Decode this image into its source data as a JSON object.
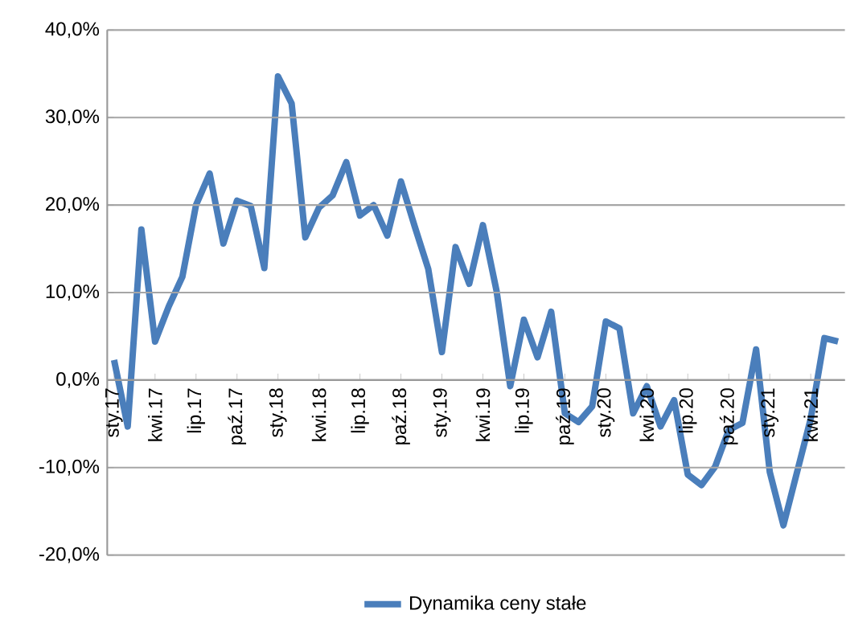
{
  "chart_data": {
    "type": "line",
    "categories": [
      "sty.17",
      null,
      null,
      "kwi.17",
      null,
      null,
      "lip.17",
      null,
      null,
      "paź.17",
      null,
      null,
      "sty.18",
      null,
      null,
      "kwi.18",
      null,
      null,
      "lip.18",
      null,
      null,
      "paź.18",
      null,
      null,
      "sty.19",
      null,
      null,
      "kwi.19",
      null,
      null,
      "lip.19",
      null,
      null,
      "paź.19",
      null,
      null,
      "sty.20",
      null,
      null,
      "kwi.20",
      null,
      null,
      "lip.20",
      null,
      null,
      "paź.20",
      null,
      null,
      "sty.21",
      null,
      null,
      "kwi.21",
      null,
      null
    ],
    "series": [
      {
        "name": "Dynamika ceny stałe",
        "color": "#4a7ebb",
        "values": [
          2.3,
          -5.3,
          17.2,
          4.4,
          8.4,
          11.8,
          20.0,
          23.6,
          15.6,
          20.5,
          19.9,
          12.8,
          34.7,
          31.6,
          16.3,
          19.7,
          21.1,
          24.9,
          18.8,
          20.0,
          16.5,
          22.7,
          17.6,
          12.7,
          3.2,
          15.2,
          11.0,
          17.7,
          10.2,
          -0.7,
          6.9,
          2.6,
          7.8,
          -3.8,
          -4.8,
          -3.0,
          6.7,
          5.9,
          -3.8,
          -0.7,
          -5.3,
          -2.3,
          -10.8,
          -12.0,
          -9.9,
          -5.7,
          -4.9,
          3.5,
          -10.5,
          -16.6,
          -10.5,
          -4.4,
          4.8,
          4.4
        ]
      }
    ],
    "ylim": [
      -20,
      40
    ],
    "yticks": [
      {
        "value": -20,
        "label": "-20,0%"
      },
      {
        "value": -10,
        "label": "-10,0%"
      },
      {
        "value": 0,
        "label": "0,0%"
      },
      {
        "value": 10,
        "label": "10,0%"
      },
      {
        "value": 20,
        "label": "20,0%"
      },
      {
        "value": 30,
        "label": "30,0%"
      },
      {
        "value": 40,
        "label": "40,0%"
      }
    ],
    "grid": "y",
    "legend": "bottom",
    "marker": "none",
    "line_style": "solid"
  }
}
